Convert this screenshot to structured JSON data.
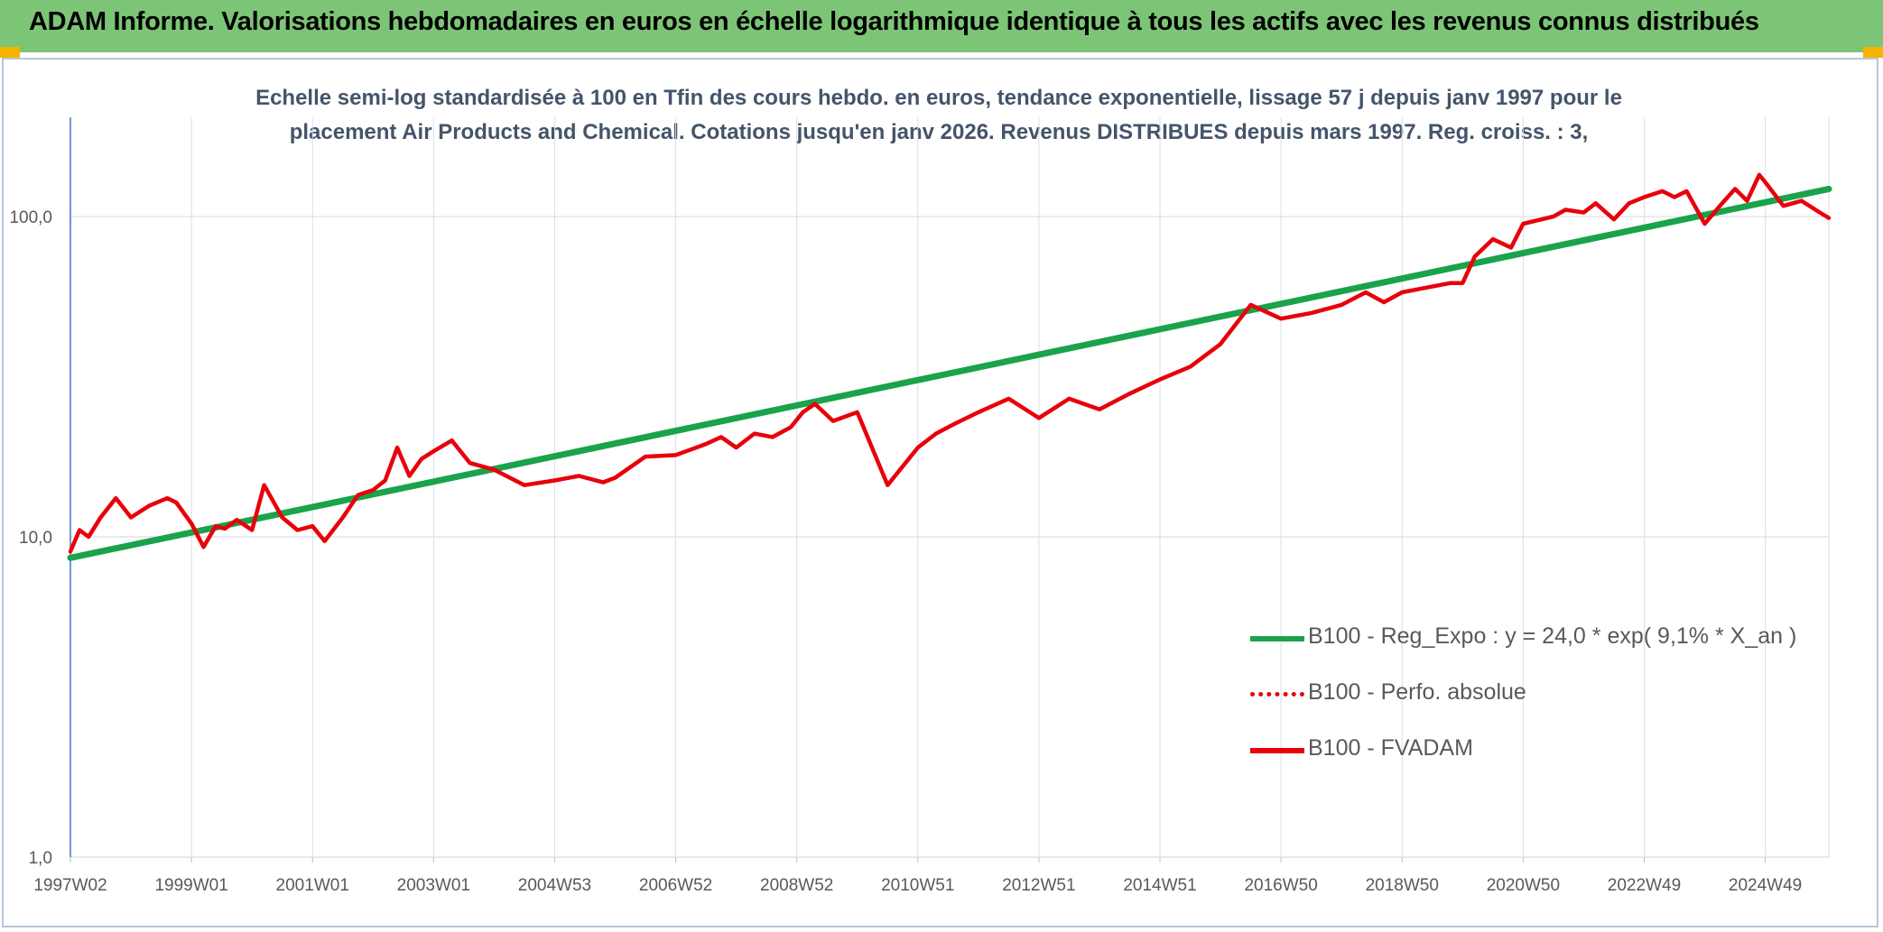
{
  "header": {
    "title": "ADAM Informe. Valorisations hebdomadaires en euros en échelle logarithmique identique à tous les actifs avec les revenus connus distribués",
    "background": "#7cc576"
  },
  "chart_data": {
    "type": "line",
    "title_line1": "Echelle semi-log standardisée à 100 en Tfin des cours hebdo. en euros, tendance exponentielle, lissage 57 j depuis janv 1997 pour le",
    "title_line2": "placement Air Products and Chemical. Cotations jusqu'en janv 2026. Revenus DISTRIBUES depuis mars 1997. Reg. croiss. : 3,",
    "y_scale": "log",
    "ylim": [
      1,
      180
    ],
    "y_ticks": [
      {
        "value": 1,
        "label": "1,0"
      },
      {
        "value": 10,
        "label": "10,0"
      },
      {
        "value": 100,
        "label": "100,0"
      }
    ],
    "xlim": [
      1997.0,
      2026.05
    ],
    "x_ticks": [
      {
        "value": 1997.0,
        "label": "1997W02"
      },
      {
        "value": 1999.0,
        "label": "1999W01"
      },
      {
        "value": 2001.0,
        "label": "2001W01"
      },
      {
        "value": 2003.0,
        "label": "2003W01"
      },
      {
        "value": 2005.0,
        "label": "2004W53"
      },
      {
        "value": 2007.0,
        "label": "2006W52"
      },
      {
        "value": 2009.0,
        "label": "2008W52"
      },
      {
        "value": 2011.0,
        "label": "2010W51"
      },
      {
        "value": 2013.0,
        "label": "2012W51"
      },
      {
        "value": 2015.0,
        "label": "2014W51"
      },
      {
        "value": 2017.0,
        "label": "2016W50"
      },
      {
        "value": 2019.0,
        "label": "2018W50"
      },
      {
        "value": 2021.0,
        "label": "2020W50"
      },
      {
        "value": 2023.0,
        "label": "2022W49"
      },
      {
        "value": 2025.0,
        "label": "2024W49"
      }
    ],
    "grid": true,
    "legend_position": "bottom-right",
    "series": [
      {
        "name": "B100 - Reg_Expo : y = 24,0 * exp( 9,1% *  X_an )",
        "color": "#1aa34a",
        "style": "solid",
        "x": [
          1997.0,
          2026.05
        ],
        "y": [
          8.6,
          122
        ]
      },
      {
        "name": "B100 - Perfo. absolue",
        "color": "#e8000b",
        "style": "dotted",
        "x": [],
        "y": []
      },
      {
        "name": "B100 - FVADAM",
        "color": "#e8000b",
        "style": "solid",
        "x": [
          1997.0,
          1997.15,
          1997.3,
          1997.5,
          1997.75,
          1998.0,
          1998.3,
          1998.6,
          1998.75,
          1999.0,
          1999.2,
          1999.4,
          1999.55,
          1999.75,
          2000.0,
          2000.2,
          2000.5,
          2000.75,
          2001.0,
          2001.2,
          2001.5,
          2001.75,
          2002.0,
          2002.2,
          2002.4,
          2002.6,
          2002.8,
          2003.0,
          2003.3,
          2003.6,
          2004.0,
          2004.5,
          2005.0,
          2005.4,
          2005.8,
          2006.0,
          2006.5,
          2007.0,
          2007.5,
          2007.75,
          2008.0,
          2008.3,
          2008.6,
          2008.9,
          2009.1,
          2009.3,
          2009.6,
          2010.0,
          2010.5,
          2011.0,
          2011.3,
          2011.6,
          2012.0,
          2012.5,
          2013.0,
          2013.5,
          2014.0,
          2014.5,
          2015.0,
          2015.5,
          2016.0,
          2016.5,
          2017.0,
          2017.5,
          2018.0,
          2018.4,
          2018.7,
          2019.0,
          2019.4,
          2019.8,
          2020.0,
          2020.2,
          2020.5,
          2020.8,
          2021.0,
          2021.3,
          2021.5,
          2021.7,
          2022.0,
          2022.2,
          2022.5,
          2022.75,
          2023.0,
          2023.3,
          2023.5,
          2023.7,
          2024.0,
          2024.25,
          2024.5,
          2024.7,
          2024.9,
          2025.0,
          2025.3,
          2025.6,
          2025.9,
          2026.05
        ],
        "y": [
          9.0,
          10.5,
          10.0,
          11.5,
          13.2,
          11.5,
          12.5,
          13.2,
          12.8,
          11.0,
          9.3,
          10.8,
          10.6,
          11.3,
          10.5,
          14.5,
          11.5,
          10.5,
          10.8,
          9.7,
          11.5,
          13.5,
          14.0,
          15.0,
          19.0,
          15.5,
          17.5,
          18.5,
          20.0,
          17.0,
          16.2,
          14.5,
          15.0,
          15.5,
          14.8,
          15.3,
          17.8,
          18.0,
          19.5,
          20.5,
          19.0,
          21.0,
          20.5,
          22.0,
          24.5,
          26.0,
          23.0,
          24.5,
          14.5,
          19.0,
          21.0,
          22.5,
          24.5,
          27.0,
          23.5,
          27.0,
          25.0,
          28.0,
          31.0,
          34.0,
          40.0,
          53.0,
          48.0,
          50.0,
          53.0,
          58.0,
          54.0,
          58.0,
          60.0,
          62.0,
          62.0,
          75.0,
          85.0,
          80.0,
          95.0,
          98.0,
          100.0,
          105.0,
          103.0,
          110.0,
          98.0,
          110.0,
          115.0,
          120.0,
          115.0,
          120.0,
          95.0,
          108.0,
          122.0,
          112.0,
          135.0,
          128.0,
          108.0,
          112.0,
          103.0,
          99.0
        ]
      }
    ]
  }
}
